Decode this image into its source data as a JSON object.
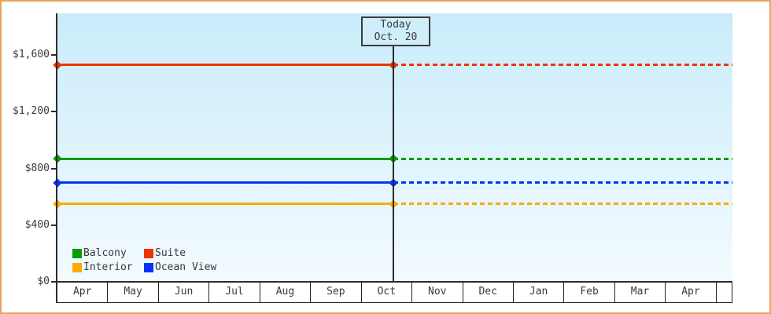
{
  "colors": {
    "frame_border": "#e9a45c",
    "axis": "#2b2b2b",
    "plot_bg_top": "#c9ecfa",
    "plot_bg_bottom": "#f3fbff",
    "band_bg": "#ffffff",
    "band_border": "#222222",
    "text": "#3a3a3a",
    "today_box_bg": "#cfeefb",
    "today_box_border": "#3b3b3b",
    "page_bg": "#ffffff"
  },
  "today_marker": {
    "line1": "Today",
    "line2": "Oct. 20"
  },
  "chart_data": {
    "type": "line",
    "title": "",
    "x_categories": [
      "Apr",
      "May",
      "Jun",
      "Jul",
      "Aug",
      "Sep",
      "Oct",
      "Nov",
      "Dec",
      "Jan",
      "Feb",
      "Mar",
      "Apr"
    ],
    "y_ticks": [
      {
        "label": "$1,600",
        "value": 1600
      },
      {
        "label": "$1,200",
        "value": 1200
      },
      {
        "label": "$800",
        "value": 800
      },
      {
        "label": "$400",
        "value": 400
      },
      {
        "label": "$0",
        "value": 0
      }
    ],
    "ylim": [
      0,
      1600
    ],
    "grid": false,
    "legend_position": "bottom-left",
    "today": {
      "label": "Today",
      "date": "Oct. 20",
      "month": "Oct",
      "day": 20
    },
    "line_style": {
      "before_today": "solid",
      "after_today": "dashed",
      "marker": "diamond"
    },
    "series": [
      {
        "name": "Suite",
        "color": "#ee3300",
        "value": 1529
      },
      {
        "name": "Balcony",
        "color": "#0a9b00",
        "value": 869
      },
      {
        "name": "Ocean View",
        "color": "#0433ff",
        "value": 699
      },
      {
        "name": "Interior",
        "color": "#ffaa00",
        "value": 549
      }
    ],
    "legend_items": [
      {
        "label": "Balcony",
        "color": "#0a9b00"
      },
      {
        "label": "Suite",
        "color": "#ee3300"
      },
      {
        "label": "Interior",
        "color": "#ffaa00"
      },
      {
        "label": "Ocean View",
        "color": "#0433ff"
      }
    ]
  }
}
